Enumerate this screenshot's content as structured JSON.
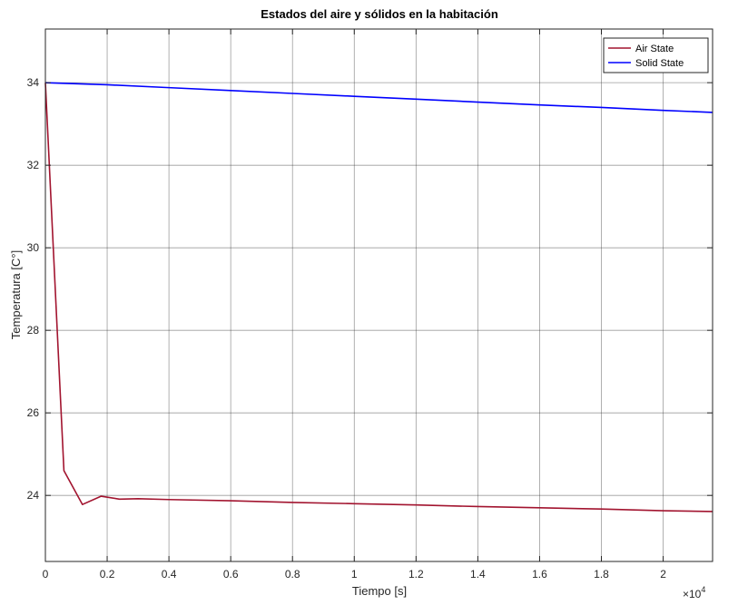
{
  "chart_data": {
    "type": "line",
    "title": "Estados del aire y sólidos en la habitación",
    "xlabel": "Tiempo [s]",
    "ylabel": "Temperatura [C°]",
    "x_exponent_label": "×10",
    "x_exponent_power": "4",
    "xlim": [
      0,
      21600
    ],
    "ylim": [
      22.4,
      35.3
    ],
    "grid": true,
    "legend_position": "top-right",
    "x_ticks": [
      0,
      2000,
      4000,
      6000,
      8000,
      10000,
      12000,
      14000,
      16000,
      18000,
      20000
    ],
    "x_tick_labels": [
      "0",
      "0.2",
      "0.4",
      "0.6",
      "0.8",
      "1",
      "1.2",
      "1.4",
      "1.6",
      "1.8",
      "2"
    ],
    "y_ticks": [
      24,
      26,
      28,
      30,
      32,
      34
    ],
    "y_tick_labels": [
      "24",
      "26",
      "28",
      "30",
      "32",
      "34"
    ],
    "series": [
      {
        "name": "Air State",
        "color": "#a2142f",
        "x": [
          0,
          600,
          1200,
          1800,
          2400,
          3000,
          4000,
          6000,
          8000,
          10000,
          12000,
          14000,
          16000,
          18000,
          20000,
          21600
        ],
        "y": [
          34.0,
          24.6,
          23.78,
          23.98,
          23.91,
          23.92,
          23.9,
          23.87,
          23.83,
          23.8,
          23.77,
          23.73,
          23.7,
          23.67,
          23.63,
          23.61
        ]
      },
      {
        "name": "Solid State",
        "color": "#0000ff",
        "x": [
          0,
          2000,
          4000,
          6000,
          8000,
          10000,
          12000,
          14000,
          16000,
          18000,
          20000,
          21600
        ],
        "y": [
          34.0,
          33.95,
          33.88,
          33.81,
          33.74,
          33.67,
          33.6,
          33.53,
          33.46,
          33.4,
          33.33,
          33.28
        ]
      }
    ]
  }
}
